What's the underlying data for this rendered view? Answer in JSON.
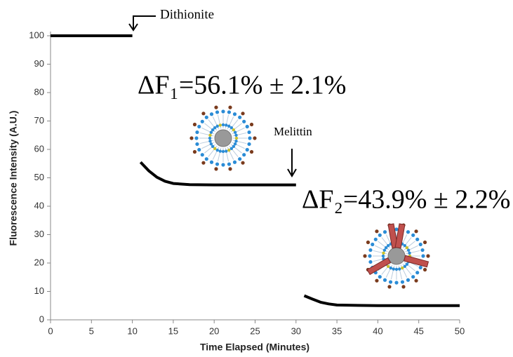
{
  "chart_data": {
    "type": "line",
    "xlabel": "Time Elapsed (Minutes)",
    "ylabel": "Fluorescence Intensity (A.U.)",
    "x": [
      0,
      2,
      4,
      6,
      8,
      10,
      10.5,
      11,
      12,
      13,
      14,
      15,
      17,
      20,
      25,
      30,
      30.5,
      31,
      32,
      33,
      34,
      35,
      40,
      45,
      50
    ],
    "values": [
      100,
      100,
      100,
      100,
      100,
      100,
      null,
      55.5,
      52.5,
      50.2,
      48.8,
      48,
      47.6,
      47.5,
      47.5,
      47.5,
      null,
      8.5,
      7.3,
      6.2,
      5.6,
      5.2,
      5,
      5,
      5
    ],
    "color": "#000000",
    "xlim": [
      0,
      50
    ],
    "xticks": [
      0,
      5,
      10,
      15,
      20,
      25,
      30,
      35,
      40,
      45,
      50
    ],
    "ylim": [
      0,
      100
    ],
    "yticks": [
      0,
      10,
      20,
      30,
      40,
      50,
      60,
      70,
      80,
      90,
      100
    ],
    "grid": false,
    "annotations": [
      "Dithionite",
      "Melittin",
      "ΔF₁=56.1% ± 2.1%",
      "ΔF₂=43.9% ± 2.2%"
    ]
  }
}
